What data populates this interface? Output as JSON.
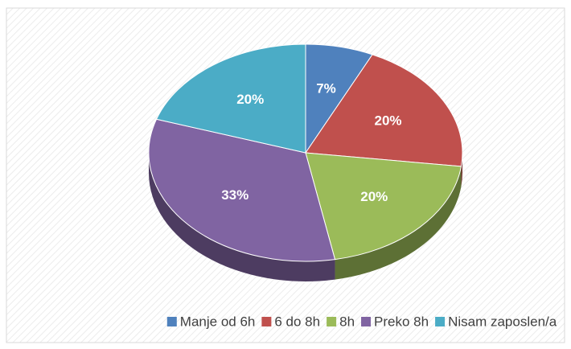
{
  "chart_data": {
    "type": "pie",
    "categories": [
      "Manje od 6h",
      "6 do 8h",
      "8h",
      "Preko 8h",
      "Nisam zaposlen/a"
    ],
    "values": [
      7,
      20,
      20,
      33,
      20
    ],
    "value_labels": [
      "7%",
      "20%",
      "20%",
      "33%",
      "20%"
    ],
    "colors": [
      "#4f81bd",
      "#c0504d",
      "#9bbb59",
      "#8064a2",
      "#4bacc6"
    ],
    "legend": "bottom"
  }
}
